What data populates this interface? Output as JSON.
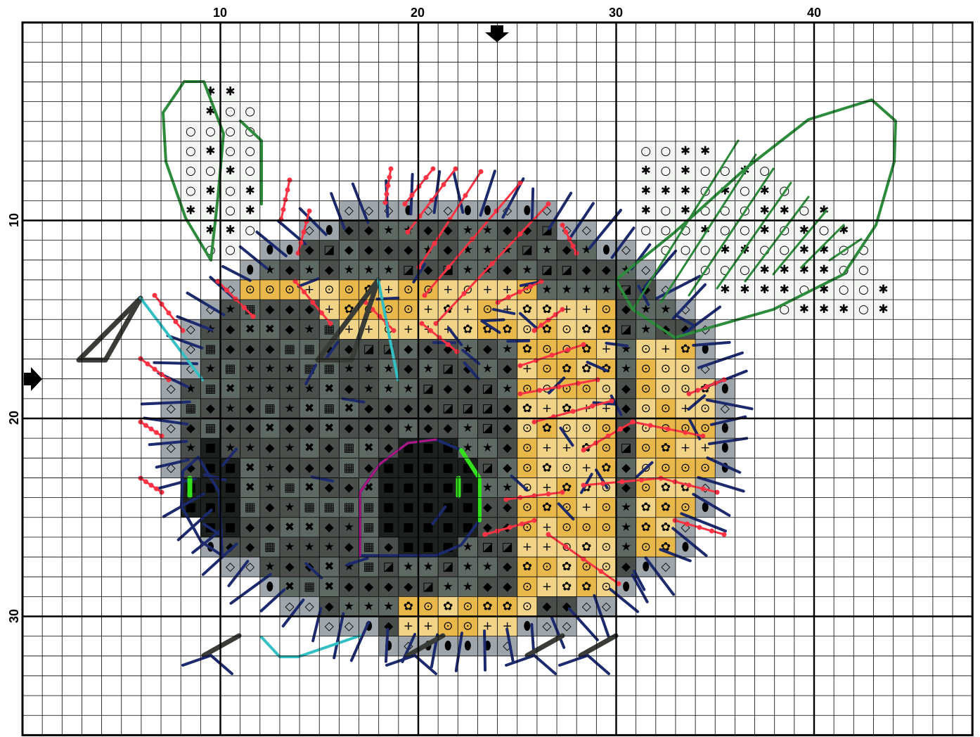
{
  "pattern": {
    "columns": 48,
    "rows": 36,
    "major_every": 10,
    "top_labels": [
      "10",
      "20",
      "30",
      "40"
    ],
    "left_labels": [
      "10",
      "20",
      "30"
    ],
    "center_markers": {
      "column": 24,
      "row": 18
    }
  },
  "colors": {
    "grid_minor": "#000000",
    "grid_major": "#000000",
    "dark_gray": "#4b4f4b",
    "mid_gray": "#5f6963",
    "light_gray": "#9ea6ab",
    "gold": "#e8b84a",
    "light_gold": "#f2d489",
    "near_black": "#1c211e",
    "wing_fill": "#f4f6f4",
    "backstitch_navy": "#1d2a6e",
    "backstitch_red": "#ff3344",
    "backstitch_green": "#2d8c3c",
    "backstitch_cyan": "#33c0c4",
    "backstitch_lime": "#33e11a",
    "backstitch_magenta": "#b0167e"
  },
  "icons": {
    "center_marker_top": "arrow-down-icon",
    "center_marker_left": "arrow-right-icon"
  }
}
